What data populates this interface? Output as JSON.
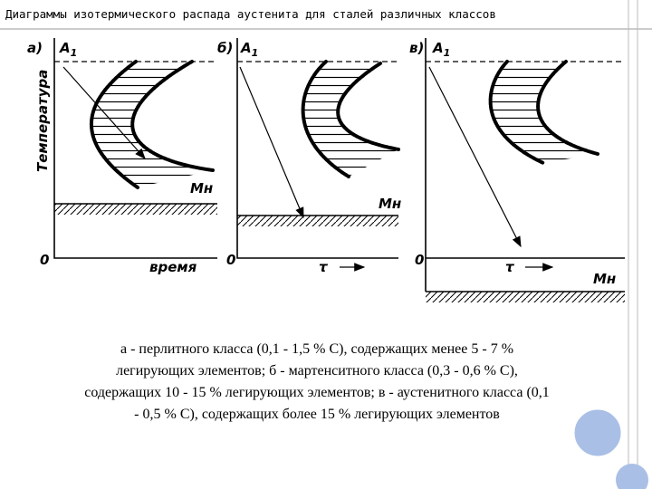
{
  "title": "Диаграммы изотермического распада аустенита для сталей различных классов",
  "y_label": "Температура",
  "panels": [
    {
      "label": "а)",
      "a1": "A",
      "a1_sub": "1",
      "ms": "Мн",
      "origin": "0",
      "x_label": "время"
    },
    {
      "label": "б)",
      "a1": "A",
      "a1_sub": "1",
      "ms": "Мн",
      "origin": "0",
      "x_label": "τ"
    },
    {
      "label": "в)",
      "a1": "A",
      "a1_sub": "1",
      "ms": "Мн",
      "origin": "0",
      "x_label": "τ"
    }
  ],
  "caption": [
    "а - перлитного класса (0,1 - 1,5 % С), содержащих менее 5 - 7 %",
    "легирующих элементов; б - мартенситного класса (0,3 - 0,6 % С),",
    "содержащих 10 - 15 % легирующих элементов; в - аустенитного класса (0,1",
    "- 0,5 % С), содержащих более 15 % легирующих элементов"
  ]
}
